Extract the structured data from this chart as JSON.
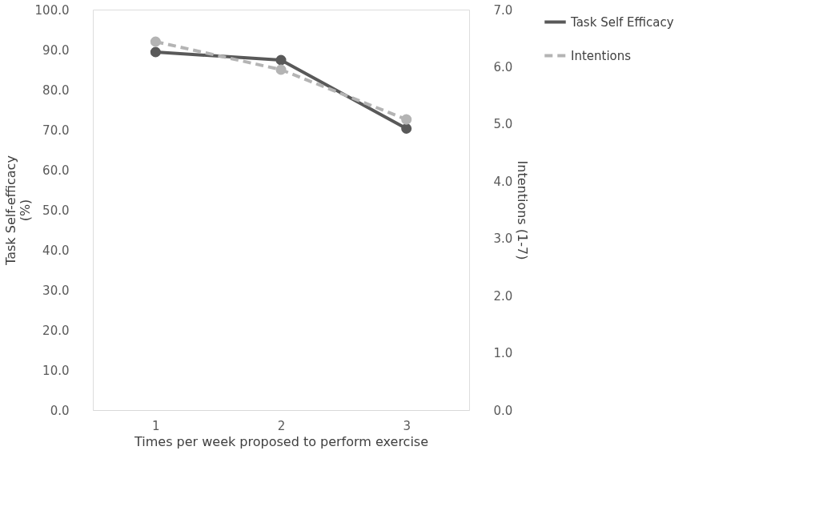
{
  "chart_data": {
    "type": "line",
    "xlabel": "Times per week proposed to perform exercise",
    "ylabel": "Task Self-efficacy\n(%)",
    "y2label": "Intentions (1-7)",
    "categories": [
      "1",
      "2",
      "3"
    ],
    "series": [
      {
        "name": "Task Self Efficacy",
        "color": "#595959",
        "values": [
          89.4,
          87.4,
          70.3
        ],
        "line_style": "solid"
      },
      {
        "name": "Intentions",
        "color": "#b4b4b4",
        "values": [
          6.44,
          5.95,
          5.08
        ],
        "axis": "y2",
        "line_style": "dashed"
      }
    ],
    "ylim": [
      0,
      100
    ],
    "yticks": [
      {
        "value": 0,
        "label": "0.0"
      },
      {
        "value": 10,
        "label": "10.0"
      },
      {
        "value": 20,
        "label": "20.0"
      },
      {
        "value": 30,
        "label": "30.0"
      },
      {
        "value": 40,
        "label": "40.0"
      },
      {
        "value": 50,
        "label": "50.0"
      },
      {
        "value": 60,
        "label": "60.0"
      },
      {
        "value": 70,
        "label": "70.0"
      },
      {
        "value": 80,
        "label": "80.0"
      },
      {
        "value": 90,
        "label": "90.0"
      },
      {
        "value": 100,
        "label": "100.0"
      }
    ],
    "y2lim": [
      0,
      7
    ],
    "y2ticks": [
      {
        "value": 0,
        "label": "0.0"
      },
      {
        "value": 1,
        "label": "1.0"
      },
      {
        "value": 2,
        "label": "2.0"
      },
      {
        "value": 3,
        "label": "3.0"
      },
      {
        "value": 4,
        "label": "4.0"
      },
      {
        "value": 5,
        "label": "5.0"
      },
      {
        "value": 6,
        "label": "6.0"
      },
      {
        "value": 7,
        "label": "7.0"
      }
    ],
    "grid": false,
    "legend": "right",
    "marker": "circle"
  }
}
